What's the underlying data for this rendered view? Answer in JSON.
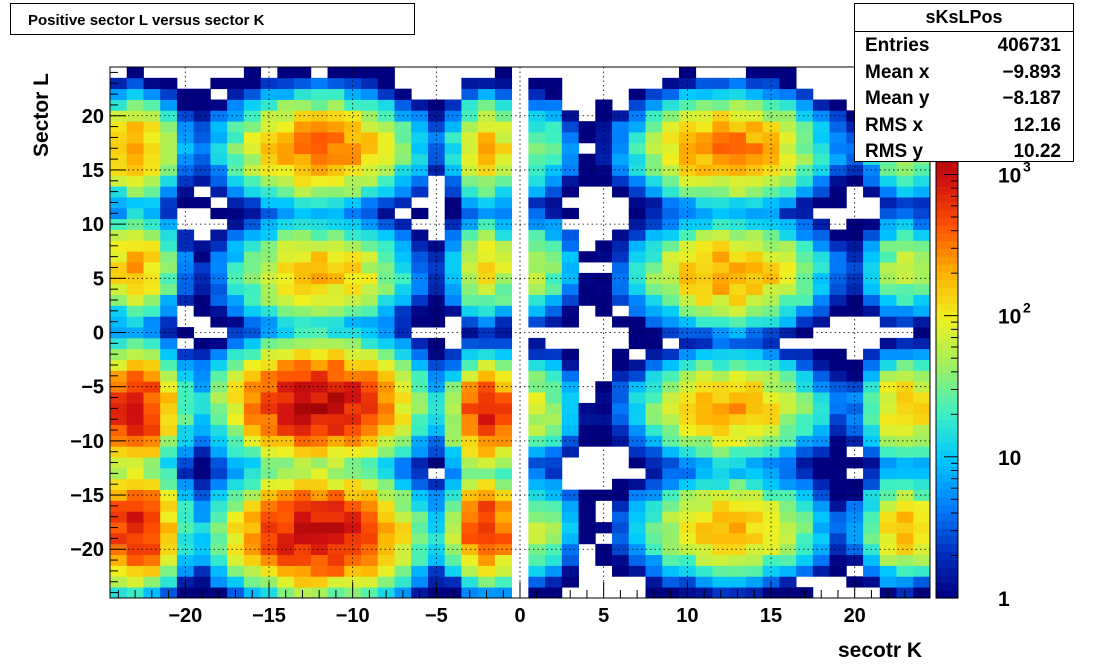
{
  "title": "Positive sector L versus sector K",
  "stats": {
    "name": "sKsLPos",
    "rows": [
      {
        "label": "Entries",
        "value": "406731"
      },
      {
        "label": "Mean x",
        "value": "−9.893"
      },
      {
        "label": "Mean y",
        "value": "−8.187"
      },
      {
        "label": "RMS x",
        "value": "12.16"
      },
      {
        "label": "RMS y",
        "value": "10.22"
      }
    ]
  },
  "chart_data": {
    "type": "heatmap",
    "title": "Positive sector L versus sector K",
    "xlabel": "secotr K",
    "ylabel": "Sector L",
    "xlim": [
      -24.5,
      24.5
    ],
    "ylim": [
      -24.5,
      24.5
    ],
    "bin_width": 1,
    "grid": true,
    "x_ticks": [
      -20,
      -15,
      -10,
      -5,
      0,
      5,
      10,
      15,
      20
    ],
    "x_tick_labels": [
      "−20",
      "−15",
      "−10",
      "−5",
      "0",
      "5",
      "10",
      "15",
      "20"
    ],
    "y_ticks": [
      -20,
      -15,
      -10,
      -5,
      0,
      5,
      10,
      15,
      20
    ],
    "y_tick_labels": [
      "−20",
      "−15",
      "−10",
      "−5",
      "0",
      "5",
      "10",
      "15",
      "20"
    ],
    "z_scale": "log",
    "zlim": [
      1,
      2000
    ],
    "z_ticks": [
      1,
      10,
      100,
      1000
    ],
    "z_tick_labels": [
      "1",
      "10",
      "10^2",
      "10^3"
    ],
    "palette": [
      "#00007f",
      "#0030c0",
      "#0080ff",
      "#00c8ff",
      "#40f0c0",
      "#a0f060",
      "#f0f020",
      "#ffb000",
      "#ff5000",
      "#d01010",
      "#8b0000"
    ],
    "blobs": [
      {
        "x": -12,
        "y": -6.5,
        "sx": 2.3,
        "sy": 2.2,
        "peak": 1200
      },
      {
        "x": -12,
        "y": -18.5,
        "sx": 2.3,
        "sy": 2.2,
        "peak": 1100
      },
      {
        "x": -23,
        "y": -7,
        "sx": 1.1,
        "sy": 2.2,
        "peak": 900
      },
      {
        "x": -23,
        "y": -18,
        "sx": 1.1,
        "sy": 2.2,
        "peak": 900
      },
      {
        "x": -2,
        "y": -7.5,
        "sx": 0.9,
        "sy": 2.0,
        "peak": 800
      },
      {
        "x": -2,
        "y": -18,
        "sx": 0.9,
        "sy": 2.0,
        "peak": 700
      },
      {
        "x": -12,
        "y": 17,
        "sx": 2.3,
        "sy": 2.0,
        "peak": 350
      },
      {
        "x": -12,
        "y": 5.5,
        "sx": 2.3,
        "sy": 2.0,
        "peak": 180
      },
      {
        "x": -23,
        "y": 17,
        "sx": 1.1,
        "sy": 2.0,
        "peak": 250
      },
      {
        "x": -23,
        "y": 6,
        "sx": 1.1,
        "sy": 2.0,
        "peak": 200
      },
      {
        "x": -2,
        "y": 17,
        "sx": 0.9,
        "sy": 2.0,
        "peak": 180
      },
      {
        "x": -2,
        "y": 6,
        "sx": 0.9,
        "sy": 2.0,
        "peak": 120
      },
      {
        "x": 1,
        "y": -7,
        "sx": 1.0,
        "sy": 2.0,
        "peak": 80
      },
      {
        "x": 1,
        "y": -18,
        "sx": 1.0,
        "sy": 2.0,
        "peak": 60
      },
      {
        "x": 1,
        "y": 17,
        "sx": 1.0,
        "sy": 2.0,
        "peak": 40
      },
      {
        "x": 1,
        "y": 6,
        "sx": 1.0,
        "sy": 2.0,
        "peak": 60
      },
      {
        "x": 12.5,
        "y": -7,
        "sx": 2.3,
        "sy": 2.0,
        "peak": 220
      },
      {
        "x": 12.5,
        "y": -18,
        "sx": 2.3,
        "sy": 2.0,
        "peak": 180
      },
      {
        "x": 12.5,
        "y": 17,
        "sx": 2.3,
        "sy": 2.0,
        "peak": 320
      },
      {
        "x": 12.5,
        "y": 5.5,
        "sx": 2.3,
        "sy": 2.0,
        "peak": 250
      },
      {
        "x": 23,
        "y": -7,
        "sx": 1.1,
        "sy": 2.0,
        "peak": 180
      },
      {
        "x": 23,
        "y": -18,
        "sx": 1.1,
        "sy": 2.0,
        "peak": 180
      },
      {
        "x": 23,
        "y": 17,
        "sx": 1.1,
        "sy": 2.0,
        "peak": 60
      },
      {
        "x": 23,
        "y": 6,
        "sx": 1.1,
        "sy": 2.0,
        "peak": 60
      }
    ]
  }
}
